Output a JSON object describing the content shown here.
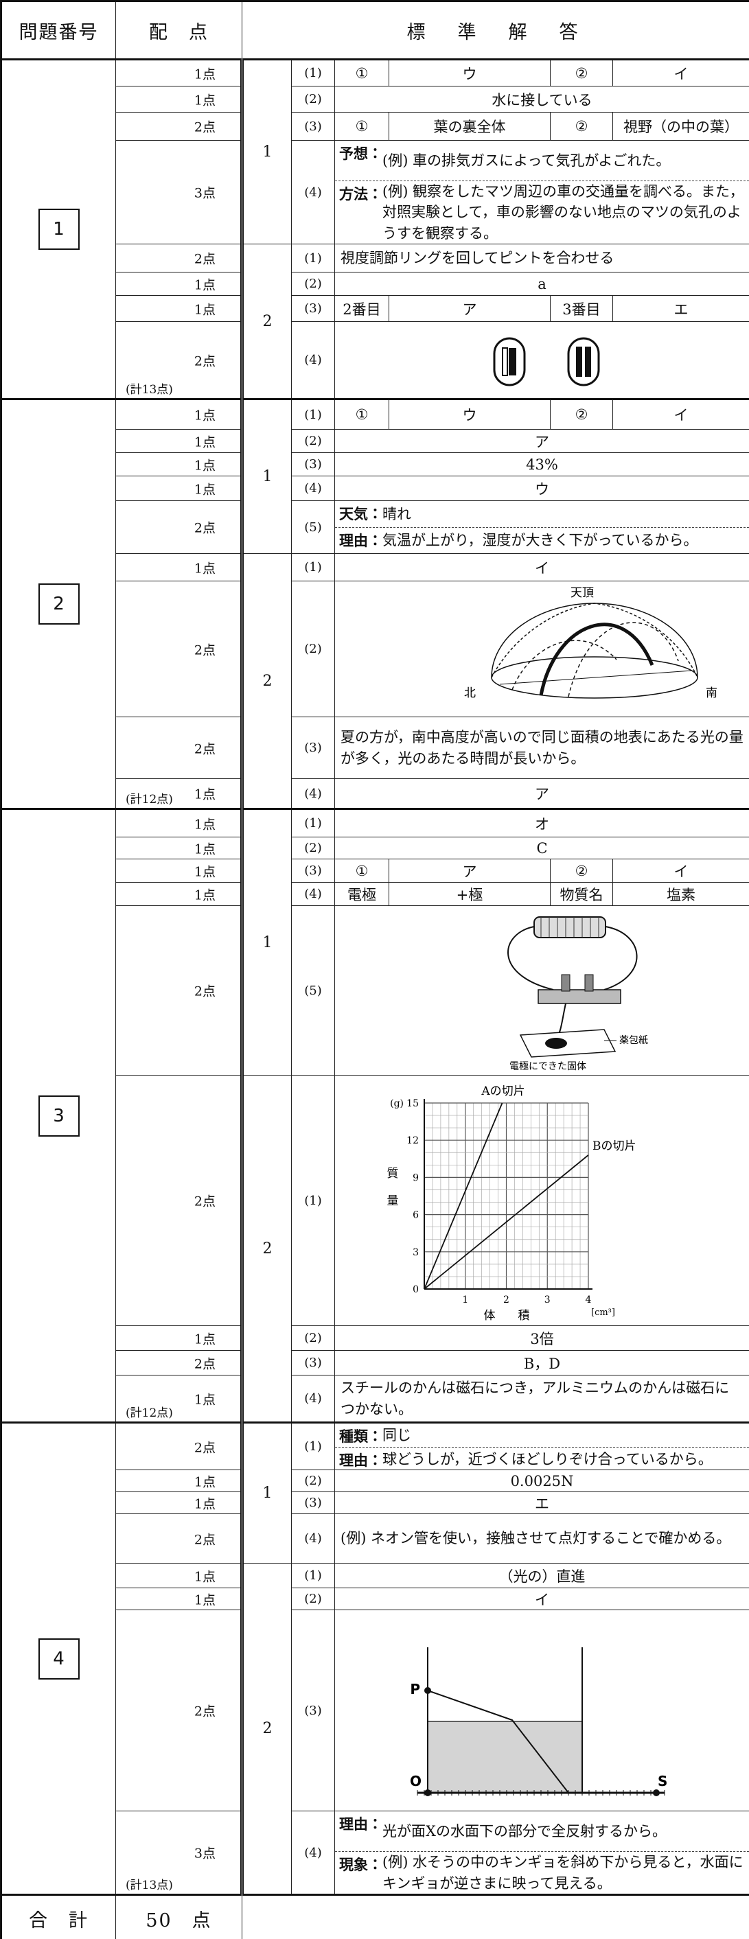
{
  "header": {
    "number": "問題番号",
    "points": "配　点",
    "answer": "標　準　解　答"
  },
  "sections": [
    {
      "number": "1",
      "total": "(計13点)",
      "parts": [
        {
          "number": "1",
          "rows": [
            {
              "points": "1点",
              "label": "(1)",
              "cells": [
                "①",
                "ウ",
                "②",
                "イ"
              ]
            },
            {
              "points": "1点",
              "label": "(2)",
              "cells": [
                "水に接している"
              ]
            },
            {
              "points": "2点",
              "label": "(3)",
              "cells": [
                "①",
                "葉の裏全体",
                "②",
                "視野（の中の葉）"
              ]
            },
            {
              "points": "3点",
              "label": "(4)",
              "lines": [
                {
                  "key": "予想：",
                  "text": "(例) 車の排気ガスによって気孔がよごれた。"
                },
                {
                  "key": "方法：",
                  "text": "(例) 観察をしたマツ周辺の車の交通量を調べる。また，対照実験として，車の影響のない地点のマツの気孔のようすを観察する。"
                }
              ]
            }
          ]
        },
        {
          "number": "2",
          "rows": [
            {
              "points": "2点",
              "label": "(1)",
              "text": "視度調節リングを回してピントを合わせる"
            },
            {
              "points": "1点",
              "label": "(2)",
              "cells": [
                "a"
              ]
            },
            {
              "points": "1点",
              "label": "(3)",
              "cells": [
                "2番目",
                "ア",
                "3番目",
                "エ"
              ]
            },
            {
              "points": "2点",
              "label": "(4)"
            }
          ]
        }
      ]
    },
    {
      "number": "2",
      "total": "(計12点)",
      "parts": [
        {
          "number": "1",
          "rows": [
            {
              "points": "1点",
              "label": "(1)",
              "cells": [
                "①",
                "ウ",
                "②",
                "イ"
              ]
            },
            {
              "points": "1点",
              "label": "(2)",
              "cells": [
                "ア"
              ]
            },
            {
              "points": "1点",
              "label": "(3)",
              "cells": [
                "43%"
              ]
            },
            {
              "points": "1点",
              "label": "(4)",
              "cells": [
                "ウ"
              ]
            },
            {
              "points": "2点",
              "label": "(5)",
              "lines": [
                {
                  "key": "天気：",
                  "text": "晴れ"
                },
                {
                  "key": "理由：",
                  "text": "気温が上がり，湿度が大きく下がっているから。"
                }
              ]
            }
          ]
        },
        {
          "number": "2",
          "rows": [
            {
              "points": "1点",
              "label": "(1)",
              "cells": [
                "イ"
              ]
            },
            {
              "points": "2点",
              "label": "(2)",
              "figure": {
                "zenith": "天頂",
                "north": "北",
                "south": "南"
              }
            },
            {
              "points": "2点",
              "label": "(3)",
              "text": "夏の方が，南中高度が高いので同じ面積の地表にあたる光の量が多く，光のあたる時間が長いから。"
            },
            {
              "points": "1点",
              "label": "(4)",
              "cells": [
                "ア"
              ]
            }
          ]
        }
      ]
    },
    {
      "number": "3",
      "total": "(計12点)",
      "parts": [
        {
          "number": "1",
          "rows": [
            {
              "points": "1点",
              "label": "(1)",
              "cells": [
                "オ"
              ]
            },
            {
              "points": "1点",
              "label": "(2)",
              "cells": [
                "C"
              ]
            },
            {
              "points": "1点",
              "label": "(3)",
              "cells": [
                "①",
                "ア",
                "②",
                "イ"
              ]
            },
            {
              "points": "1点",
              "label": "(4)",
              "cells": [
                "電極",
                "+極",
                "物質名",
                "塩素"
              ]
            },
            {
              "points": "2点",
              "label": "(5)",
              "figure": {
                "paper": "薬包紙",
                "solid": "電極にできた固体"
              }
            }
          ]
        },
        {
          "number": "2",
          "rows": [
            {
              "points": "2点",
              "label": "(1)",
              "figure": {
                "y_unit": "(g)",
                "y_ticks": [
                  "0",
                  "3",
                  "6",
                  "9",
                  "12",
                  "15"
                ],
                "x_ticks": [
                  "1",
                  "2",
                  "3",
                  "4"
                ],
                "x_unit": "[cm³]",
                "y_title": [
                  "質",
                  "量"
                ],
                "x_title": [
                  "体",
                  "積"
                ],
                "label_a": "Aの切片",
                "label_b": "Bの切片"
              }
            },
            {
              "points": "1点",
              "label": "(2)",
              "cells": [
                "3倍"
              ]
            },
            {
              "points": "2点",
              "label": "(3)",
              "cells": [
                "B，D"
              ]
            },
            {
              "points": "1点",
              "label": "(4)",
              "text": "スチールのかんは磁石につき，アルミニウムのかんは磁石につかない。"
            }
          ]
        }
      ]
    },
    {
      "number": "4",
      "total": "(計13点)",
      "parts": [
        {
          "number": "1",
          "rows": [
            {
              "points": "2点",
              "label": "(1)",
              "lines": [
                {
                  "key": "種類：",
                  "text": "同じ"
                },
                {
                  "key": "理由：",
                  "text": "球どうしが，近づくほどしりぞけ合っているから。"
                }
              ]
            },
            {
              "points": "1点",
              "label": "(2)",
              "cells": [
                "0.0025N"
              ]
            },
            {
              "points": "1点",
              "label": "(3)",
              "cells": [
                "エ"
              ]
            },
            {
              "points": "2点",
              "label": "(4)",
              "text": "(例) ネオン管を使い，接触させて点灯することで確かめる。"
            }
          ]
        },
        {
          "number": "2",
          "rows": [
            {
              "points": "1点",
              "label": "(1)",
              "cells": [
                "（光の）直進"
              ]
            },
            {
              "points": "1点",
              "label": "(2)",
              "cells": [
                "イ"
              ]
            },
            {
              "points": "2点",
              "label": "(3)",
              "figure": {
                "p": "P",
                "o": "O",
                "s": "S"
              }
            },
            {
              "points": "3点",
              "label": "(4)",
              "lines": [
                {
                  "key": "理由：",
                  "text": "光が面Xの水面下の部分で全反射するから。"
                },
                {
                  "key": "現象：",
                  "text": "(例) 水そうの中のキンギョを斜め下から見ると，水面にキンギョが逆さまに映って見える。"
                }
              ]
            }
          ]
        }
      ]
    }
  ],
  "footer": {
    "label": "合　計",
    "total": "50　点"
  }
}
